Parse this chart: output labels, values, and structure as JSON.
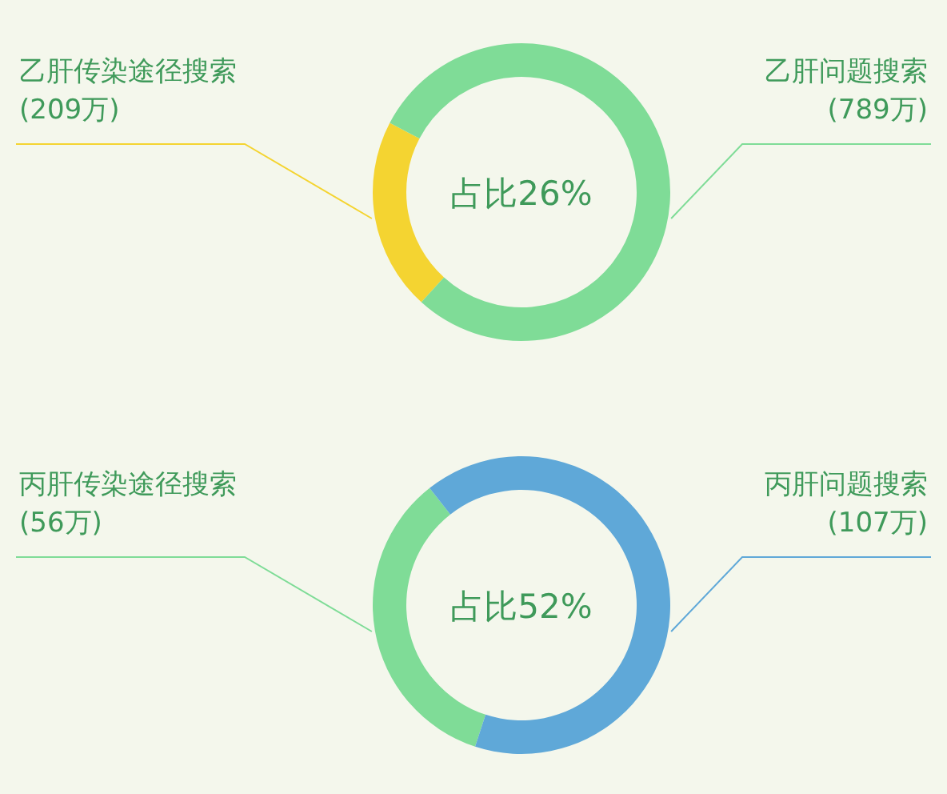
{
  "chart_data": [
    {
      "type": "donut",
      "categories": [
        "乙肝传染途径搜索",
        "乙肝问题搜索"
      ],
      "values": [
        209,
        789
      ],
      "colors": [
        "#f4d431",
        "#7fdc97"
      ],
      "value_labels": [
        "(209万)",
        "(789万)"
      ],
      "annotations": [
        "占比26%"
      ]
    },
    {
      "type": "donut",
      "categories": [
        "丙肝传染途径搜索",
        "丙肝问题搜索"
      ],
      "values": [
        56,
        107
      ],
      "colors": [
        "#7fdc97",
        "#5fa8d8"
      ],
      "value_labels": [
        "(56万)",
        "(107万)"
      ],
      "annotations": [
        "占比52%"
      ]
    }
  ]
}
